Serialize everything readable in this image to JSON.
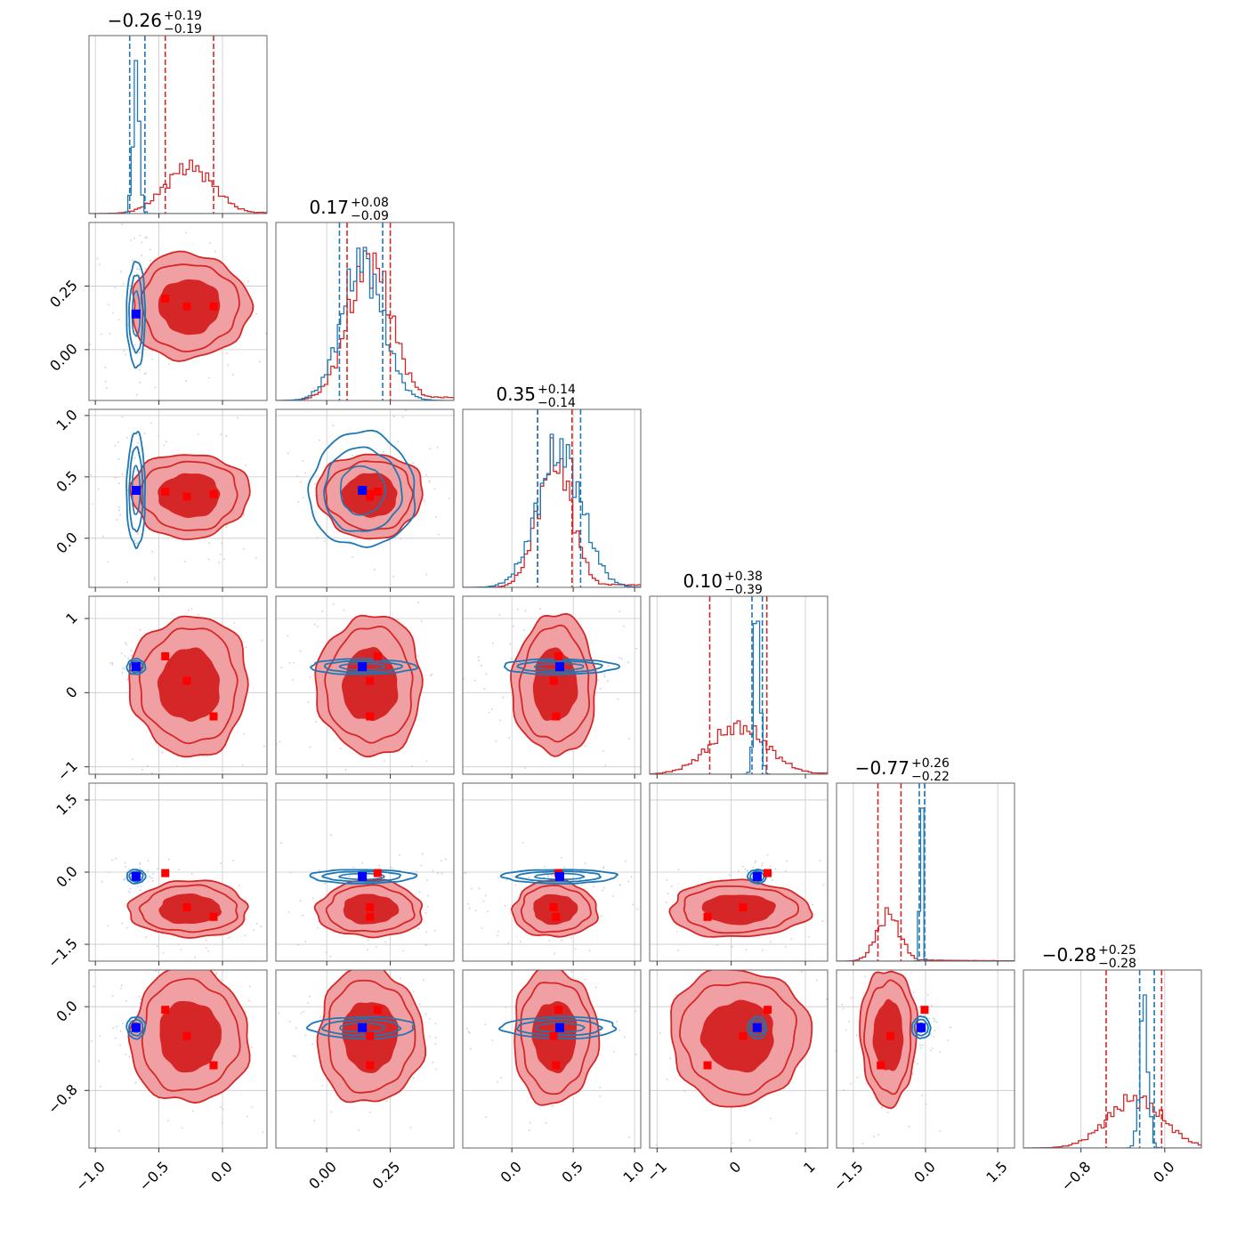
{
  "chart_data": {
    "type": "corner",
    "n_params": 6,
    "colors": {
      "red": "#d62728",
      "blue": "#1f77b4",
      "red_light": "#f0a0a2",
      "red_mid": "#e36466",
      "marker_blue": "#0000ff",
      "marker_red": "#ff0000"
    },
    "titles": [
      {
        "median": "−0.26",
        "plus": "+0.19",
        "minus": "−0.19"
      },
      {
        "median": "0.17",
        "plus": "+0.08",
        "minus": "−0.09"
      },
      {
        "median": "0.35",
        "plus": "+0.14",
        "minus": "−0.14"
      },
      {
        "median": "0.10",
        "plus": "+0.38",
        "minus": "−0.39"
      },
      {
        "median": "−0.77",
        "plus": "+0.26",
        "minus": "−0.22"
      },
      {
        "median": "−0.28",
        "plus": "+0.25",
        "minus": "−0.28"
      }
    ],
    "ranges": [
      [
        -1.05,
        0.35
      ],
      [
        -0.2,
        0.5
      ],
      [
        -0.4,
        1.05
      ],
      [
        -1.1,
        1.3
      ],
      [
        -1.85,
        1.85
      ],
      [
        -1.35,
        0.35
      ]
    ],
    "ticks": [
      [
        {
          "v": -1.0,
          "l": "−1.0"
        },
        {
          "v": -0.5,
          "l": "−0.5"
        },
        {
          "v": 0.0,
          "l": "0.0"
        }
      ],
      [
        {
          "v": 0.0,
          "l": "0.00"
        },
        {
          "v": 0.25,
          "l": "0.25"
        }
      ],
      [
        {
          "v": 0.0,
          "l": "0.0"
        },
        {
          "v": 0.5,
          "l": "0.5"
        },
        {
          "v": 1.0,
          "l": "1.0"
        }
      ],
      [
        {
          "v": -1,
          "l": "−1"
        },
        {
          "v": 0,
          "l": "0"
        },
        {
          "v": 1,
          "l": "1"
        }
      ],
      [
        {
          "v": -1.5,
          "l": "−1.5"
        },
        {
          "v": 0.0,
          "l": "0.0"
        },
        {
          "v": 1.5,
          "l": "1.5"
        }
      ],
      [
        {
          "v": -0.8,
          "l": "−0.8"
        },
        {
          "v": 0.0,
          "l": "0.0"
        }
      ]
    ],
    "red": {
      "mean": [
        -0.26,
        0.17,
        0.35,
        0.1,
        -0.77,
        -0.28
      ],
      "std": [
        0.19,
        0.085,
        0.14,
        0.385,
        0.24,
        0.265
      ],
      "quantile_lines": [
        [
          -0.45,
          -0.07
        ],
        [
          0.08,
          0.25
        ],
        [
          0.21,
          0.49
        ],
        [
          -0.29,
          0.48
        ],
        [
          -0.99,
          -0.51
        ],
        [
          -0.56,
          -0.03
        ]
      ]
    },
    "blue": {
      "mean": [
        -0.68,
        0.14,
        0.39,
        0.35,
        -0.09,
        -0.2
      ],
      "std": [
        0.025,
        0.08,
        0.18,
        0.04,
        0.03,
        0.04
      ],
      "quantile_lines": [
        [
          -0.73,
          -0.61
        ],
        [
          0.05,
          0.22
        ],
        [
          0.21,
          0.56
        ],
        [
          0.28,
          0.42
        ],
        [
          -0.13,
          -0.02
        ],
        [
          -0.24,
          -0.1
        ]
      ]
    },
    "red_markers": [
      [
        -0.45,
        -0.28,
        -0.07
      ],
      [
        0.2,
        0.17,
        0.17
      ],
      [
        0.38,
        0.34,
        0.36
      ],
      [
        0.49,
        0.16,
        -0.32
      ],
      [
        -0.02,
        -0.73,
        -0.93
      ],
      [
        -0.03,
        -0.28,
        -0.56
      ]
    ],
    "blue_markers": [
      -0.68,
      0.14,
      0.39,
      0.35,
      -0.09,
      -0.2
    ]
  }
}
